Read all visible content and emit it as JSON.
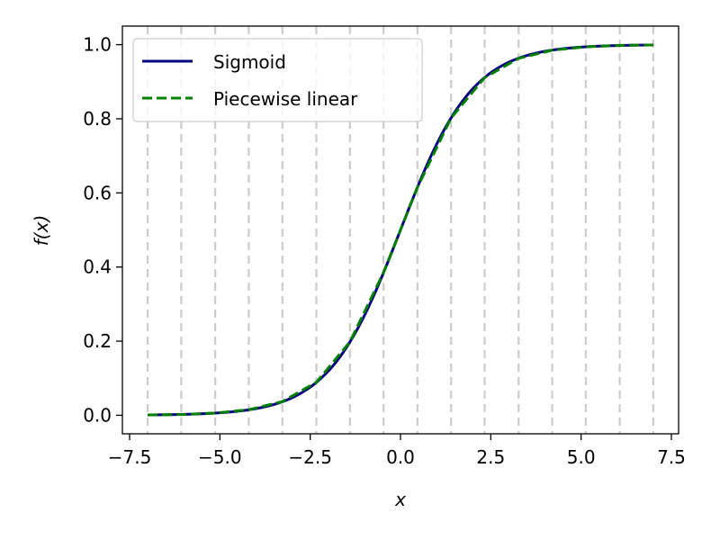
{
  "chart_data": {
    "type": "line",
    "title": "",
    "xlabel": "x",
    "ylabel": "f(x)",
    "xlim": [
      -7.7,
      7.7
    ],
    "ylim": [
      -0.05,
      1.05
    ],
    "x_ticks": [
      -7.5,
      -5.0,
      -2.5,
      0.0,
      2.5,
      5.0,
      7.5
    ],
    "x_tick_labels": [
      "−7.5",
      "−5.0",
      "−2.5",
      "0.0",
      "2.5",
      "5.0",
      "7.5"
    ],
    "y_ticks": [
      0.0,
      0.2,
      0.4,
      0.6,
      0.8,
      1.0
    ],
    "y_tick_labels": [
      "0.0",
      "0.2",
      "0.4",
      "0.6",
      "0.8",
      "1.0"
    ],
    "grid": false,
    "breakpoints": [
      -7.0,
      -6.07,
      -5.13,
      -4.2,
      -3.27,
      -2.33,
      -1.4,
      -0.47,
      0.47,
      1.4,
      2.33,
      3.27,
      4.2,
      5.13,
      6.07,
      7.0
    ],
    "breakpoint_color": "#cccccc",
    "legend_position": "upper-left",
    "series": [
      {
        "name": "Sigmoid",
        "style": "solid",
        "color": "#000080",
        "function": "sigmoid",
        "x_range": [
          -7.0,
          7.0
        ]
      },
      {
        "name": "Piecewise linear",
        "style": "dashed",
        "color": "#008000",
        "x": [
          -7.0,
          -6.07,
          -5.13,
          -4.2,
          -3.27,
          -2.33,
          -1.4,
          -0.47,
          0.47,
          1.4,
          2.33,
          3.27,
          4.2,
          5.13,
          6.07,
          7.0
        ],
        "y": [
          0.001,
          0.002,
          0.006,
          0.015,
          0.037,
          0.089,
          0.198,
          0.385,
          0.615,
          0.802,
          0.911,
          0.963,
          0.985,
          0.994,
          0.998,
          0.999
        ]
      }
    ]
  }
}
